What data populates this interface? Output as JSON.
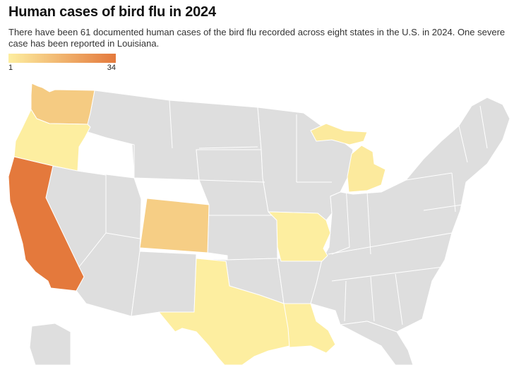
{
  "title": "Human cases of bird flu in 2024",
  "subtitle": "There have been 61 documented human cases of the bird flu recorded across eight states in the U.S. in 2024. One severe case has been reported in Louisiana.",
  "legend": {
    "min_label": "1",
    "max_label": "34",
    "min_value": 1,
    "max_value": 34,
    "min_color": "#fdeea0",
    "max_color": "#e4793c"
  },
  "colors": {
    "no_cases": "#dedede",
    "border": "#ffffff"
  },
  "states": [
    {
      "name": "Washington",
      "cases": 11
    },
    {
      "name": "Oregon",
      "cases": 1
    },
    {
      "name": "California",
      "cases": 34
    },
    {
      "name": "Colorado",
      "cases": 10
    },
    {
      "name": "Missouri",
      "cases": 1
    },
    {
      "name": "Michigan",
      "cases": 2
    },
    {
      "name": "Texas",
      "cases": 1
    },
    {
      "name": "Louisiana",
      "cases": 1
    }
  ]
}
